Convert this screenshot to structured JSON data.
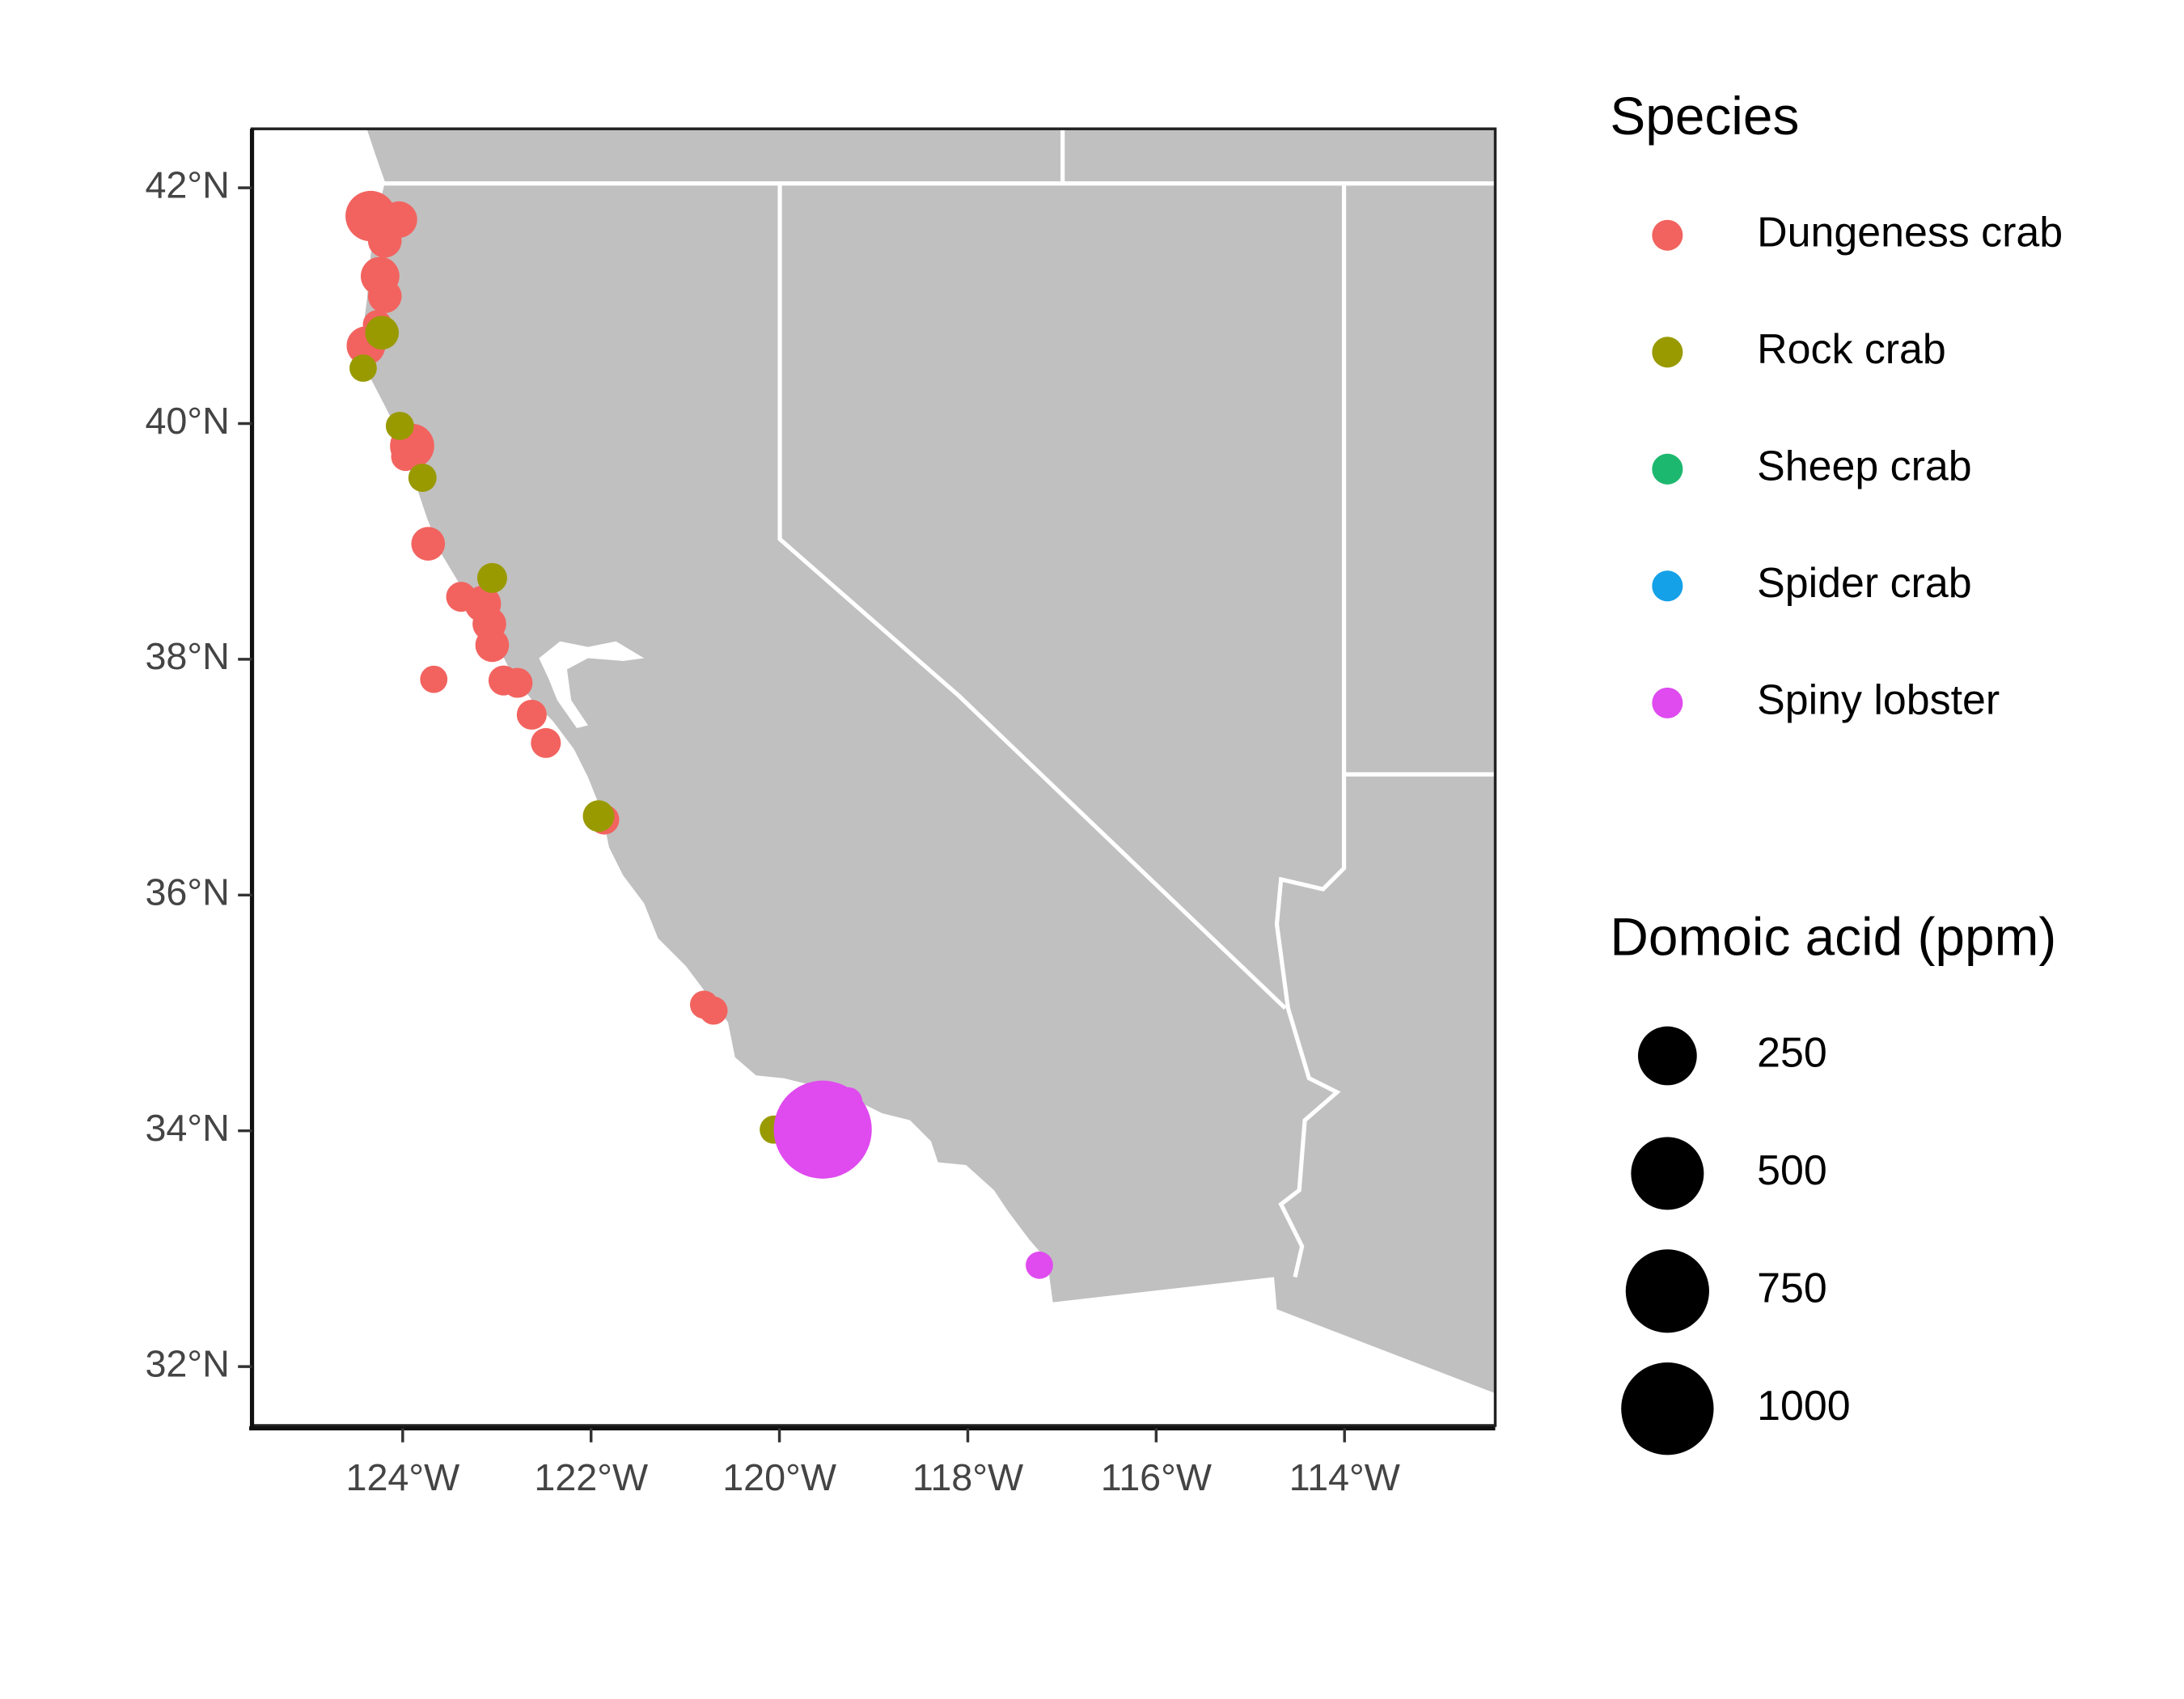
{
  "chart_data": {
    "type": "scatter",
    "xlim": [
      -125.6,
      -112.4
    ],
    "ylim": [
      31.5,
      42.5
    ],
    "xticks": [
      {
        "value": -124,
        "label": "124°W"
      },
      {
        "value": -122,
        "label": "122°W"
      },
      {
        "value": -120,
        "label": "120°W"
      },
      {
        "value": -118,
        "label": "118°W"
      },
      {
        "value": -116,
        "label": "116°W"
      },
      {
        "value": -114,
        "label": "114°W"
      }
    ],
    "yticks": [
      {
        "value": 32,
        "label": "32°N"
      },
      {
        "value": 34,
        "label": "34°N"
      },
      {
        "value": 36,
        "label": "36°N"
      },
      {
        "value": 38,
        "label": "38°N"
      },
      {
        "value": 40,
        "label": "40°N"
      },
      {
        "value": 42,
        "label": "42°N"
      }
    ],
    "color_legend_title": "Species",
    "size_legend_title": "Domoic acid (ppm)",
    "size_legend": [
      250,
      500,
      750,
      1000
    ],
    "size_legend_color": "#000000",
    "series": [
      {
        "name": "Dungeness crab",
        "color": "#F2635F",
        "x": [
          -124.34,
          -124.04,
          -124.19,
          -124.24,
          -124.19,
          -124.39,
          -124.27,
          -123.9,
          -123.97,
          -123.73,
          -123.38,
          -123.15,
          -123.08,
          -123.05,
          -123.67,
          -122.78,
          -122.93,
          -122.63,
          -122.48,
          -121.86,
          -120.8,
          -120.7
        ],
        "y": [
          41.76,
          41.73,
          41.55,
          41.25,
          41.08,
          40.66,
          40.84,
          39.81,
          39.72,
          38.98,
          38.53,
          38.47,
          38.3,
          38.12,
          37.83,
          37.8,
          37.82,
          37.53,
          37.29,
          36.64,
          35.07,
          35.02
        ],
        "size": [
          140,
          28,
          16,
          40,
          16,
          40,
          3,
          80,
          3,
          16,
          5,
          28,
          16,
          16,
          1,
          5,
          5,
          5,
          5,
          5,
          2,
          2
        ]
      },
      {
        "name": "Rock crab",
        "color": "#999A00",
        "x": [
          -124.22,
          -124.42,
          -124.03,
          -123.79,
          -123.05,
          -121.92,
          -120.06
        ],
        "y": [
          40.77,
          40.47,
          39.98,
          39.54,
          38.69,
          36.67,
          34.01
        ],
        "size": [
          16,
          1,
          2,
          2,
          5,
          9,
          2
        ]
      },
      {
        "name": "Sheep crab",
        "color": "#1DB86F",
        "x": [],
        "y": [],
        "size": []
      },
      {
        "name": "Spider crab",
        "color": "#15A1E8",
        "x": [],
        "y": [],
        "size": []
      },
      {
        "name": "Spiny lobster",
        "color": "#DF4BEF",
        "x": [
          -119.54,
          -119.27,
          -117.24
        ],
        "y": [
          34.01,
          34.25,
          32.86
        ],
        "size": [
          1170,
          2,
          1
        ]
      }
    ]
  }
}
